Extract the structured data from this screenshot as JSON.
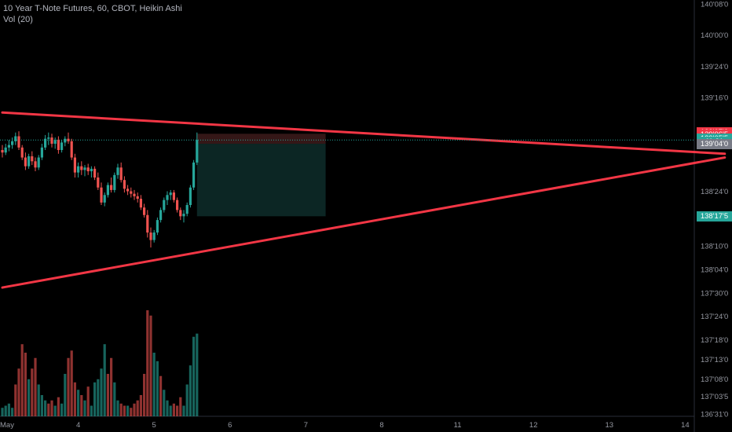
{
  "legend": {
    "title": "10 Year T-Note Futures, 60, CBOT, Heikin Ashi",
    "volume": "Vol (20)"
  },
  "colors": {
    "background": "#000000",
    "up": "#26a69a",
    "down": "#ef5350",
    "trendline": "#f23645",
    "axis_text": "#9598a1",
    "target_zone": "#0d2a28",
    "stop_zone": "#3a1a1a"
  },
  "chart_data": {
    "type": "candlestick",
    "y_axis": {
      "unit": "price (32nds)",
      "ticks": [
        "140'08'0",
        "140'00'0",
        "139'24'0",
        "139'16'0",
        "138'24'0",
        "138'10'0",
        "138'04'0",
        "137'30'0",
        "137'24'0",
        "137'18'0",
        "137'13'0",
        "137'08'0",
        "137'03'5",
        "136'31'0"
      ],
      "tick_values": [
        140.25,
        140.0,
        139.75,
        139.5,
        138.75,
        138.3125,
        138.125,
        137.9375,
        137.75,
        137.5625,
        137.40625,
        137.25,
        137.109375,
        136.96875
      ],
      "range": [
        136.95,
        140.28
      ]
    },
    "x_axis": {
      "ticks": [
        "May",
        "4",
        "5",
        "6",
        "7",
        "8",
        "11",
        "12",
        "13",
        "14"
      ],
      "tick_index": [
        0,
        23,
        46,
        69,
        92,
        115,
        138,
        161,
        184,
        207
      ]
    },
    "price_labels": [
      {
        "text": "139'07'0",
        "value": 139.21875,
        "color": "#f23645"
      },
      {
        "text": "139'06'5",
        "value": 139.203,
        "color": "#f23645"
      },
      {
        "text": "139'05'5",
        "value": 139.172,
        "color": "#26a69a"
      },
      {
        "text": "11:21",
        "value": 139.145,
        "color": "#26a69a"
      },
      {
        "text": "139'04'0",
        "value": 139.125,
        "color": "#787b86"
      },
      {
        "text": "138'17'5",
        "value": 138.55,
        "color": "#26a69a"
      }
    ],
    "last_price": 139.16,
    "candles": [
      [
        139.08,
        139.12,
        139.02,
        139.06
      ],
      [
        139.06,
        139.13,
        139.04,
        139.1
      ],
      [
        139.1,
        139.16,
        139.07,
        139.12
      ],
      [
        139.12,
        139.18,
        139.09,
        139.15
      ],
      [
        139.15,
        139.22,
        139.12,
        139.19
      ],
      [
        139.19,
        139.23,
        139.08,
        139.1
      ],
      [
        139.1,
        139.12,
        139.0,
        139.02
      ],
      [
        139.02,
        139.06,
        138.92,
        138.95
      ],
      [
        138.95,
        139.05,
        138.93,
        139.03
      ],
      [
        139.03,
        139.07,
        138.96,
        138.99
      ],
      [
        138.99,
        139.02,
        138.91,
        138.94
      ],
      [
        138.94,
        139.04,
        138.92,
        139.02
      ],
      [
        139.02,
        139.13,
        139.0,
        139.1
      ],
      [
        139.1,
        139.2,
        139.08,
        139.17
      ],
      [
        139.17,
        139.22,
        139.12,
        139.18
      ],
      [
        139.18,
        139.21,
        139.1,
        139.13
      ],
      [
        139.13,
        139.18,
        139.09,
        139.16
      ],
      [
        139.16,
        139.19,
        139.05,
        139.08
      ],
      [
        139.08,
        139.16,
        139.06,
        139.14
      ],
      [
        139.14,
        139.19,
        139.11,
        139.17
      ],
      [
        139.17,
        139.22,
        139.13,
        139.15
      ],
      [
        139.15,
        139.17,
        139.0,
        139.02
      ],
      [
        139.02,
        139.05,
        138.86,
        138.9
      ],
      [
        138.9,
        138.98,
        138.86,
        138.95
      ],
      [
        138.95,
        138.99,
        138.88,
        138.92
      ],
      [
        138.92,
        138.96,
        138.87,
        138.94
      ],
      [
        138.94,
        138.97,
        138.88,
        138.91
      ],
      [
        138.91,
        138.95,
        138.86,
        138.93
      ],
      [
        138.93,
        138.95,
        138.84,
        138.86
      ],
      [
        138.86,
        138.9,
        138.76,
        138.78
      ],
      [
        138.78,
        138.82,
        138.64,
        138.66
      ],
      [
        138.66,
        138.74,
        138.63,
        138.72
      ],
      [
        138.72,
        138.82,
        138.7,
        138.8
      ],
      [
        138.8,
        138.86,
        138.74,
        138.76
      ],
      [
        138.76,
        138.9,
        138.74,
        138.88
      ],
      [
        138.88,
        138.97,
        138.85,
        138.94
      ],
      [
        138.94,
        138.98,
        138.82,
        138.84
      ],
      [
        138.84,
        138.87,
        138.74,
        138.77
      ],
      [
        138.77,
        138.8,
        138.72,
        138.75
      ],
      [
        138.75,
        138.78,
        138.7,
        138.73
      ],
      [
        138.73,
        138.76,
        138.68,
        138.71
      ],
      [
        138.71,
        138.74,
        138.66,
        138.69
      ],
      [
        138.69,
        138.72,
        138.6,
        138.62
      ],
      [
        138.62,
        138.65,
        138.54,
        138.56
      ],
      [
        138.56,
        138.6,
        138.38,
        138.42
      ],
      [
        138.42,
        138.46,
        138.3,
        138.36
      ],
      [
        138.36,
        138.44,
        138.34,
        138.42
      ],
      [
        138.42,
        138.54,
        138.4,
        138.52
      ],
      [
        138.52,
        138.62,
        138.5,
        138.6
      ],
      [
        138.6,
        138.7,
        138.58,
        138.68
      ],
      [
        138.68,
        138.75,
        138.64,
        138.72
      ],
      [
        138.72,
        138.76,
        138.68,
        138.74
      ],
      [
        138.74,
        138.76,
        138.66,
        138.68
      ],
      [
        138.68,
        138.7,
        138.58,
        138.6
      ],
      [
        138.6,
        138.62,
        138.52,
        138.55
      ],
      [
        138.55,
        138.6,
        138.5,
        138.57
      ],
      [
        138.57,
        138.66,
        138.55,
        138.64
      ],
      [
        138.64,
        138.8,
        138.62,
        138.78
      ],
      [
        138.78,
        139.0,
        138.76,
        138.98
      ],
      [
        138.98,
        139.22,
        138.96,
        139.16
      ]
    ],
    "volume": [
      [
        0.08,
        "up"
      ],
      [
        0.1,
        "up"
      ],
      [
        0.12,
        "up"
      ],
      [
        0.08,
        "up"
      ],
      [
        0.3,
        "down"
      ],
      [
        0.45,
        "down"
      ],
      [
        0.68,
        "down"
      ],
      [
        0.6,
        "down"
      ],
      [
        0.35,
        "up"
      ],
      [
        0.45,
        "down"
      ],
      [
        0.55,
        "down"
      ],
      [
        0.3,
        "up"
      ],
      [
        0.2,
        "up"
      ],
      [
        0.15,
        "up"
      ],
      [
        0.12,
        "down"
      ],
      [
        0.15,
        "down"
      ],
      [
        0.1,
        "up"
      ],
      [
        0.18,
        "down"
      ],
      [
        0.12,
        "up"
      ],
      [
        0.4,
        "up"
      ],
      [
        0.55,
        "down"
      ],
      [
        0.62,
        "down"
      ],
      [
        0.32,
        "down"
      ],
      [
        0.25,
        "up"
      ],
      [
        0.2,
        "down"
      ],
      [
        0.15,
        "up"
      ],
      [
        0.28,
        "down"
      ],
      [
        0.1,
        "up"
      ],
      [
        0.32,
        "up"
      ],
      [
        0.35,
        "up"
      ],
      [
        0.45,
        "up"
      ],
      [
        0.68,
        "up"
      ],
      [
        0.4,
        "down"
      ],
      [
        0.55,
        "down"
      ],
      [
        0.32,
        "up"
      ],
      [
        0.15,
        "up"
      ],
      [
        0.12,
        "down"
      ],
      [
        0.1,
        "down"
      ],
      [
        0.1,
        "up"
      ],
      [
        0.08,
        "down"
      ],
      [
        0.12,
        "down"
      ],
      [
        0.15,
        "down"
      ],
      [
        0.2,
        "down"
      ],
      [
        0.4,
        "down"
      ],
      [
        1.0,
        "down"
      ],
      [
        0.95,
        "down"
      ],
      [
        0.6,
        "up"
      ],
      [
        0.52,
        "up"
      ],
      [
        0.38,
        "down"
      ],
      [
        0.25,
        "up"
      ],
      [
        0.15,
        "up"
      ],
      [
        0.1,
        "up"
      ],
      [
        0.12,
        "down"
      ],
      [
        0.1,
        "down"
      ],
      [
        0.18,
        "down"
      ],
      [
        0.1,
        "up"
      ],
      [
        0.3,
        "up"
      ],
      [
        0.48,
        "up"
      ],
      [
        0.75,
        "up"
      ],
      [
        0.78,
        "up"
      ]
    ],
    "trendlines": [
      {
        "from": [
          0,
          139.38
        ],
        "to": [
          219,
          139.05
        ]
      },
      {
        "from": [
          0,
          137.98
        ],
        "to": [
          219,
          139.02
        ]
      }
    ],
    "position": {
      "start_index": 59,
      "end_index": 98,
      "entry": 139.13,
      "stop": 139.21,
      "target": 138.55
    }
  }
}
